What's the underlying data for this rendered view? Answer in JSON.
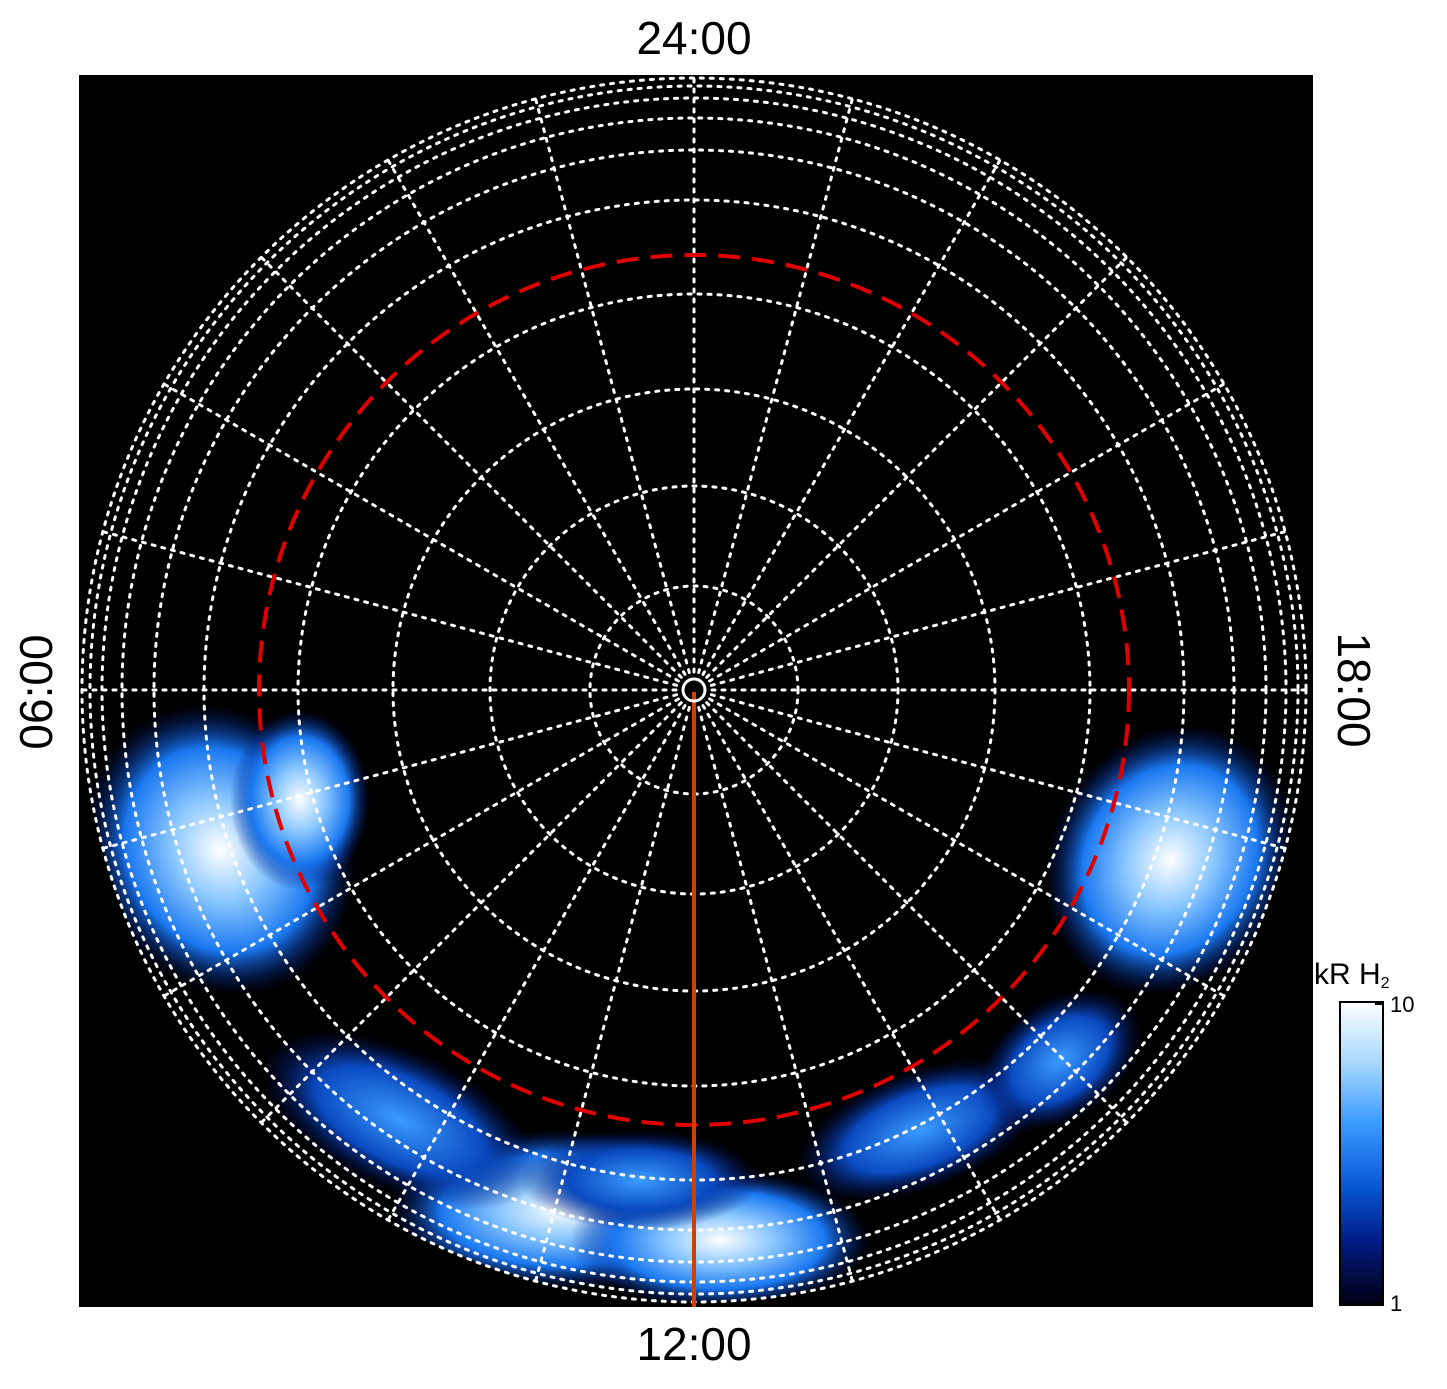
{
  "chart_data": {
    "type": "polar",
    "time_labels": {
      "top": "24:00",
      "left": "06:00",
      "bottom": "12:00",
      "right": "18:00"
    },
    "colorbar": {
      "label": "kR H",
      "label_subscript": "2",
      "clim": [
        1,
        10
      ],
      "ticks": [
        1,
        10
      ],
      "log": true,
      "colors": [
        "#000010",
        "#001a80",
        "#0a5ad8",
        "#3a9cff",
        "#a8d8ff",
        "#ffffff"
      ]
    }
  }
}
